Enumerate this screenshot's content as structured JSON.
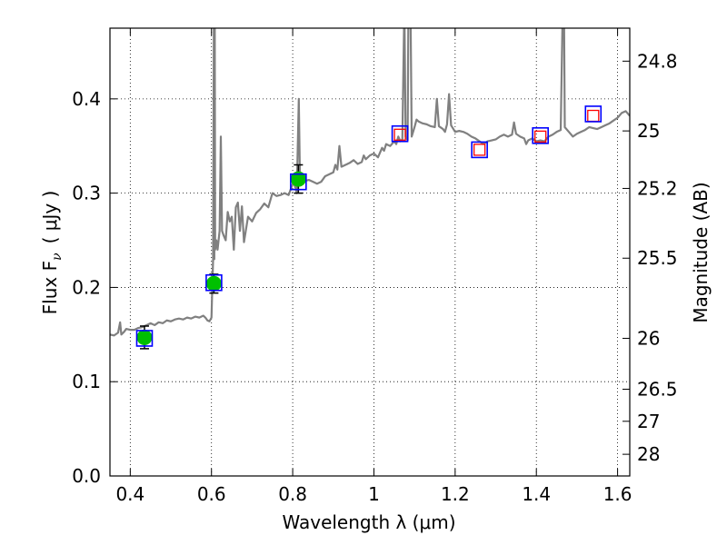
{
  "chart_data": {
    "type": "scatter",
    "xlabel": "Wavelength  λ (μm)",
    "ylabel_left": "Flux  F",
    "ylabel_left_sub": "ν",
    "ylabel_left_unit": "( μJy )",
    "ylabel_right": "Magnitude (AB)",
    "xlim": [
      0.35,
      1.63
    ],
    "ylim": [
      0.0,
      0.475
    ],
    "x_ticks": [
      0.4,
      0.6,
      0.8,
      1.0,
      1.2,
      1.4,
      1.6
    ],
    "x_tick_labels": [
      "0.4",
      "0.6",
      "0.8",
      "1",
      "1.2",
      "1.4",
      "1.6"
    ],
    "y_ticks": [
      0.0,
      0.1,
      0.2,
      0.3,
      0.4
    ],
    "y_tick_labels": [
      "0.0",
      "0.1",
      "0.2",
      "0.3",
      "0.4"
    ],
    "right_ticks": [
      {
        "label": "24.8",
        "flux": 0.44
      },
      {
        "label": "25",
        "flux": 0.366
      },
      {
        "label": "25.2",
        "flux": 0.305
      },
      {
        "label": "25.5",
        "flux": 0.231
      },
      {
        "label": "26",
        "flux": 0.146
      },
      {
        "label": "26.5",
        "flux": 0.092
      },
      {
        "label": "27",
        "flux": 0.058
      },
      {
        "label": "28",
        "flux": 0.023
      }
    ],
    "grid": true,
    "colors": {
      "spectrum": "#808080",
      "observed_marker": "#00c000",
      "model_box": "#0000ff",
      "upper_box": "#ff0000",
      "errorbar": "#000000"
    },
    "series": [
      {
        "name": "spectrum",
        "kind": "line",
        "points": [
          [
            0.35,
            0.15
          ],
          [
            0.36,
            0.149
          ],
          [
            0.37,
            0.152
          ],
          [
            0.375,
            0.163
          ],
          [
            0.378,
            0.15
          ],
          [
            0.385,
            0.153
          ],
          [
            0.39,
            0.156
          ],
          [
            0.4,
            0.155
          ],
          [
            0.41,
            0.155
          ],
          [
            0.42,
            0.157
          ],
          [
            0.43,
            0.158
          ],
          [
            0.44,
            0.16
          ],
          [
            0.45,
            0.162
          ],
          [
            0.46,
            0.16
          ],
          [
            0.47,
            0.163
          ],
          [
            0.48,
            0.162
          ],
          [
            0.49,
            0.165
          ],
          [
            0.5,
            0.164
          ],
          [
            0.51,
            0.166
          ],
          [
            0.52,
            0.167
          ],
          [
            0.53,
            0.166
          ],
          [
            0.54,
            0.168
          ],
          [
            0.55,
            0.167
          ],
          [
            0.56,
            0.169
          ],
          [
            0.57,
            0.168
          ],
          [
            0.58,
            0.17
          ],
          [
            0.585,
            0.168
          ],
          [
            0.59,
            0.165
          ],
          [
            0.595,
            0.164
          ],
          [
            0.6,
            0.168
          ],
          [
            0.602,
            0.2
          ],
          [
            0.604,
            0.23
          ],
          [
            0.606,
            0.5
          ],
          [
            0.607,
            0.23
          ],
          [
            0.608,
            0.5
          ],
          [
            0.609,
            0.24
          ],
          [
            0.612,
            0.25
          ],
          [
            0.615,
            0.24
          ],
          [
            0.62,
            0.26
          ],
          [
            0.623,
            0.36
          ],
          [
            0.626,
            0.26
          ],
          [
            0.63,
            0.255
          ],
          [
            0.635,
            0.25
          ],
          [
            0.64,
            0.28
          ],
          [
            0.645,
            0.27
          ],
          [
            0.65,
            0.275
          ],
          [
            0.655,
            0.24
          ],
          [
            0.66,
            0.285
          ],
          [
            0.665,
            0.29
          ],
          [
            0.67,
            0.26
          ],
          [
            0.675,
            0.286
          ],
          [
            0.68,
            0.248
          ],
          [
            0.69,
            0.275
          ],
          [
            0.7,
            0.27
          ],
          [
            0.71,
            0.279
          ],
          [
            0.72,
            0.283
          ],
          [
            0.73,
            0.289
          ],
          [
            0.74,
            0.285
          ],
          [
            0.75,
            0.3
          ],
          [
            0.76,
            0.297
          ],
          [
            0.77,
            0.298
          ],
          [
            0.78,
            0.3
          ],
          [
            0.79,
            0.298
          ],
          [
            0.8,
            0.31
          ],
          [
            0.805,
            0.308
          ],
          [
            0.81,
            0.3
          ],
          [
            0.815,
            0.4
          ],
          [
            0.818,
            0.31
          ],
          [
            0.825,
            0.316
          ],
          [
            0.83,
            0.313
          ],
          [
            0.84,
            0.314
          ],
          [
            0.85,
            0.312
          ],
          [
            0.86,
            0.31
          ],
          [
            0.87,
            0.312
          ],
          [
            0.88,
            0.318
          ],
          [
            0.89,
            0.32
          ],
          [
            0.9,
            0.322
          ],
          [
            0.905,
            0.33
          ],
          [
            0.91,
            0.325
          ],
          [
            0.915,
            0.35
          ],
          [
            0.92,
            0.328
          ],
          [
            0.93,
            0.33
          ],
          [
            0.94,
            0.332
          ],
          [
            0.95,
            0.335
          ],
          [
            0.96,
            0.331
          ],
          [
            0.97,
            0.333
          ],
          [
            0.975,
            0.34
          ],
          [
            0.98,
            0.336
          ],
          [
            0.99,
            0.34
          ],
          [
            1.0,
            0.342
          ],
          [
            1.01,
            0.338
          ],
          [
            1.02,
            0.348
          ],
          [
            1.025,
            0.345
          ],
          [
            1.03,
            0.352
          ],
          [
            1.04,
            0.35
          ],
          [
            1.05,
            0.355
          ],
          [
            1.055,
            0.352
          ],
          [
            1.06,
            0.36
          ],
          [
            1.065,
            0.355
          ],
          [
            1.07,
            0.357
          ],
          [
            1.075,
            0.5
          ],
          [
            1.078,
            0.36
          ],
          [
            1.083,
            0.356
          ],
          [
            1.085,
            0.5
          ],
          [
            1.09,
            0.5
          ],
          [
            1.093,
            0.36
          ],
          [
            1.1,
            0.37
          ],
          [
            1.105,
            0.378
          ],
          [
            1.11,
            0.376
          ],
          [
            1.12,
            0.374
          ],
          [
            1.13,
            0.373
          ],
          [
            1.14,
            0.371
          ],
          [
            1.15,
            0.37
          ],
          [
            1.155,
            0.4
          ],
          [
            1.16,
            0.371
          ],
          [
            1.17,
            0.368
          ],
          [
            1.175,
            0.365
          ],
          [
            1.18,
            0.373
          ],
          [
            1.185,
            0.405
          ],
          [
            1.19,
            0.372
          ],
          [
            1.2,
            0.365
          ],
          [
            1.21,
            0.366
          ],
          [
            1.22,
            0.365
          ],
          [
            1.23,
            0.363
          ],
          [
            1.24,
            0.36
          ],
          [
            1.25,
            0.358
          ],
          [
            1.26,
            0.355
          ],
          [
            1.27,
            0.352
          ],
          [
            1.28,
            0.355
          ],
          [
            1.29,
            0.356
          ],
          [
            1.3,
            0.357
          ],
          [
            1.31,
            0.36
          ],
          [
            1.32,
            0.362
          ],
          [
            1.33,
            0.36
          ],
          [
            1.34,
            0.362
          ],
          [
            1.345,
            0.375
          ],
          [
            1.35,
            0.363
          ],
          [
            1.36,
            0.36
          ],
          [
            1.37,
            0.358
          ],
          [
            1.375,
            0.352
          ],
          [
            1.38,
            0.356
          ],
          [
            1.39,
            0.358
          ],
          [
            1.4,
            0.355
          ],
          [
            1.41,
            0.356
          ],
          [
            1.42,
            0.355
          ],
          [
            1.43,
            0.36
          ],
          [
            1.44,
            0.362
          ],
          [
            1.45,
            0.365
          ],
          [
            1.46,
            0.367
          ],
          [
            1.465,
            0.5
          ],
          [
            1.468,
            0.5
          ],
          [
            1.47,
            0.37
          ],
          [
            1.48,
            0.365
          ],
          [
            1.49,
            0.36
          ],
          [
            1.5,
            0.363
          ],
          [
            1.51,
            0.365
          ],
          [
            1.52,
            0.367
          ],
          [
            1.53,
            0.37
          ],
          [
            1.54,
            0.369
          ],
          [
            1.55,
            0.368
          ],
          [
            1.56,
            0.37
          ],
          [
            1.57,
            0.372
          ],
          [
            1.58,
            0.374
          ],
          [
            1.59,
            0.377
          ],
          [
            1.6,
            0.38
          ],
          [
            1.61,
            0.385
          ],
          [
            1.62,
            0.387
          ],
          [
            1.63,
            0.382
          ]
        ]
      },
      {
        "name": "observed photometry",
        "kind": "points",
        "marker": "circle",
        "x": [
          0.435,
          0.606,
          0.814
        ],
        "y": [
          0.147,
          0.204,
          0.315
        ],
        "err": [
          0.012,
          0.01,
          0.015
        ]
      },
      {
        "name": "model photometry",
        "kind": "points",
        "marker": "square",
        "x": [
          0.435,
          0.606,
          0.814,
          1.064,
          1.26,
          1.41,
          1.54
        ],
        "y": [
          0.146,
          0.205,
          0.312,
          0.363,
          0.346,
          0.361,
          0.384
        ]
      },
      {
        "name": "upper limits",
        "kind": "points",
        "marker": "square-small",
        "x": [
          1.064,
          1.26,
          1.41,
          1.54
        ],
        "y": [
          0.362,
          0.346,
          0.36,
          0.382
        ]
      }
    ]
  }
}
